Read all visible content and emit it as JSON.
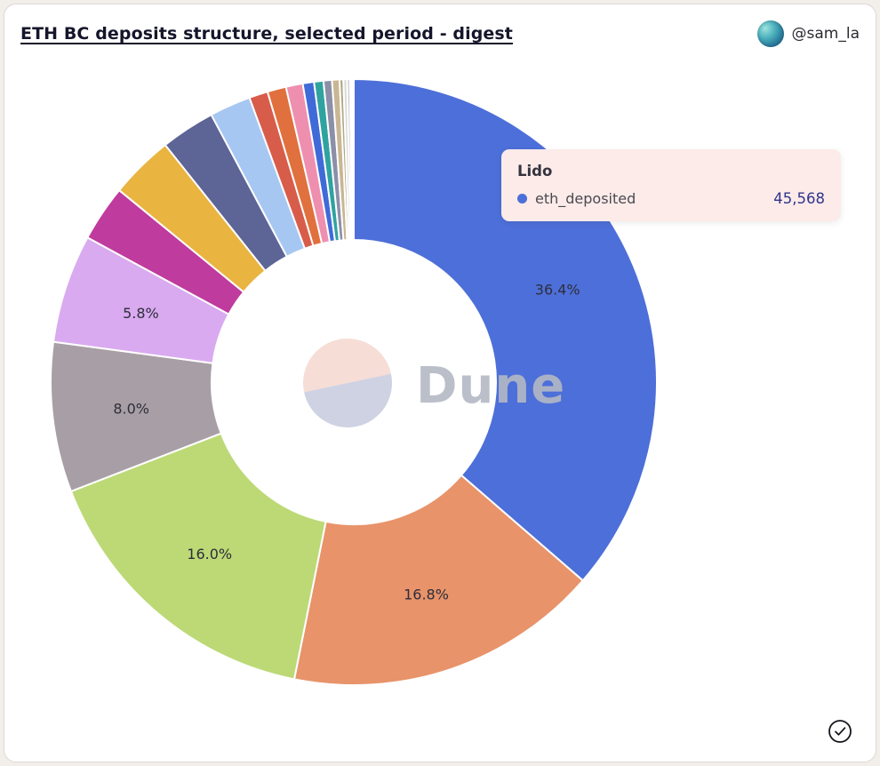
{
  "header": {
    "title": "ETH BC deposits structure, selected period - digest",
    "author_handle": "@sam_la"
  },
  "tooltip": {
    "title": "Lido",
    "series_label": "eth_deposited",
    "value": "45,568"
  },
  "watermark": {
    "text": "Dune"
  },
  "colors": {
    "tooltip_bg": "#fcebe9",
    "tooltip_value": "#31358c",
    "lido_blue": "#4d6fd9"
  },
  "chart_data": {
    "type": "pie",
    "donut": true,
    "title": "ETH BC deposits structure, selected period - digest",
    "series_name": "eth_deposited",
    "legend_position": "none",
    "labeled_slices": [
      "36.4%",
      "16.8%",
      "16.0%",
      "8.0%",
      "5.8%"
    ],
    "slices": [
      {
        "name": "Lido",
        "pct": 36.4,
        "label": "36.4%",
        "color": "#4d6fd9",
        "value": "45,568"
      },
      {
        "name": "",
        "pct": 16.8,
        "label": "16.8%",
        "color": "#e8936a"
      },
      {
        "name": "",
        "pct": 16.0,
        "label": "16.0%",
        "color": "#bcd976"
      },
      {
        "name": "",
        "pct": 8.0,
        "label": "8.0%",
        "color": "#a89fa6"
      },
      {
        "name": "",
        "pct": 5.8,
        "label": "5.8%",
        "color": "#d9aaf0"
      },
      {
        "name": "",
        "pct": 3.0,
        "label": "",
        "color": "#bf3b9d"
      },
      {
        "name": "",
        "pct": 3.4,
        "label": "",
        "color": "#e9b440"
      },
      {
        "name": "",
        "pct": 2.9,
        "label": "",
        "color": "#5d6496"
      },
      {
        "name": "",
        "pct": 2.2,
        "label": "",
        "color": "#a6c7f2"
      },
      {
        "name": "",
        "pct": 1.0,
        "label": "",
        "color": "#d85c4a"
      },
      {
        "name": "",
        "pct": 1.0,
        "label": "",
        "color": "#e0703d"
      },
      {
        "name": "",
        "pct": 0.9,
        "label": "",
        "color": "#ef8fb0"
      },
      {
        "name": "",
        "pct": 0.6,
        "label": "",
        "color": "#3f6ad8"
      },
      {
        "name": "",
        "pct": 0.5,
        "label": "",
        "color": "#2fa3a0"
      },
      {
        "name": "",
        "pct": 0.45,
        "label": "",
        "color": "#8b8fa8"
      },
      {
        "name": "",
        "pct": 0.4,
        "label": "",
        "color": "#c9b693"
      },
      {
        "name": "",
        "pct": 0.2,
        "label": "",
        "color": "#b0a883"
      },
      {
        "name": "",
        "pct": 0.2,
        "label": "",
        "color": "#d9d9d9"
      },
      {
        "name": "",
        "pct": 0.15,
        "label": "",
        "color": "#bfbfbf"
      },
      {
        "name": "",
        "pct": 0.1,
        "label": "",
        "color": "#e8e8e8"
      },
      {
        "name": "",
        "pct": 0.1,
        "label": "",
        "color": "#f2f2f2"
      }
    ]
  }
}
